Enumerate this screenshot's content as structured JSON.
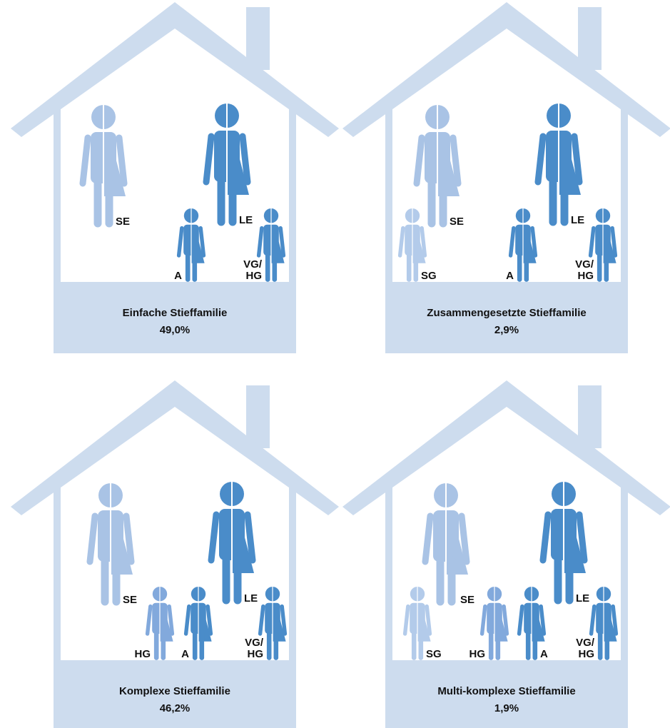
{
  "houses": [
    {
      "title": "Einfache Stieffamilie",
      "share": "49,0%",
      "figures": [
        {
          "label": [
            "SE"
          ]
        },
        {
          "label": [
            "LE"
          ]
        },
        {
          "label": [
            "A"
          ]
        },
        {
          "label": [
            "VG/",
            "HG"
          ]
        }
      ]
    },
    {
      "title": "Zusammengesetzte Stieffamilie",
      "share": "2,9%",
      "figures": [
        {
          "label": [
            "SE"
          ]
        },
        {
          "label": [
            "LE"
          ]
        },
        {
          "label": [
            "SG"
          ]
        },
        {
          "label": [
            "A"
          ]
        },
        {
          "label": [
            "VG/",
            "HG"
          ]
        }
      ]
    },
    {
      "title": "Komplexe Stieffamilie",
      "share": "46,2%",
      "figures": [
        {
          "label": [
            "SE"
          ]
        },
        {
          "label": [
            "LE"
          ]
        },
        {
          "label": [
            "HG"
          ]
        },
        {
          "label": [
            "A"
          ]
        },
        {
          "label": [
            "VG/",
            "HG"
          ]
        }
      ]
    },
    {
      "title": "Multi-komplexe Stieffamilie",
      "share": "1,9%",
      "figures": [
        {
          "label": [
            "SE"
          ]
        },
        {
          "label": [
            "LE"
          ]
        },
        {
          "label": [
            "SG"
          ]
        },
        {
          "label": [
            "HG"
          ]
        },
        {
          "label": [
            "A"
          ]
        },
        {
          "label": [
            "VG/",
            "HG"
          ]
        }
      ]
    }
  ]
}
